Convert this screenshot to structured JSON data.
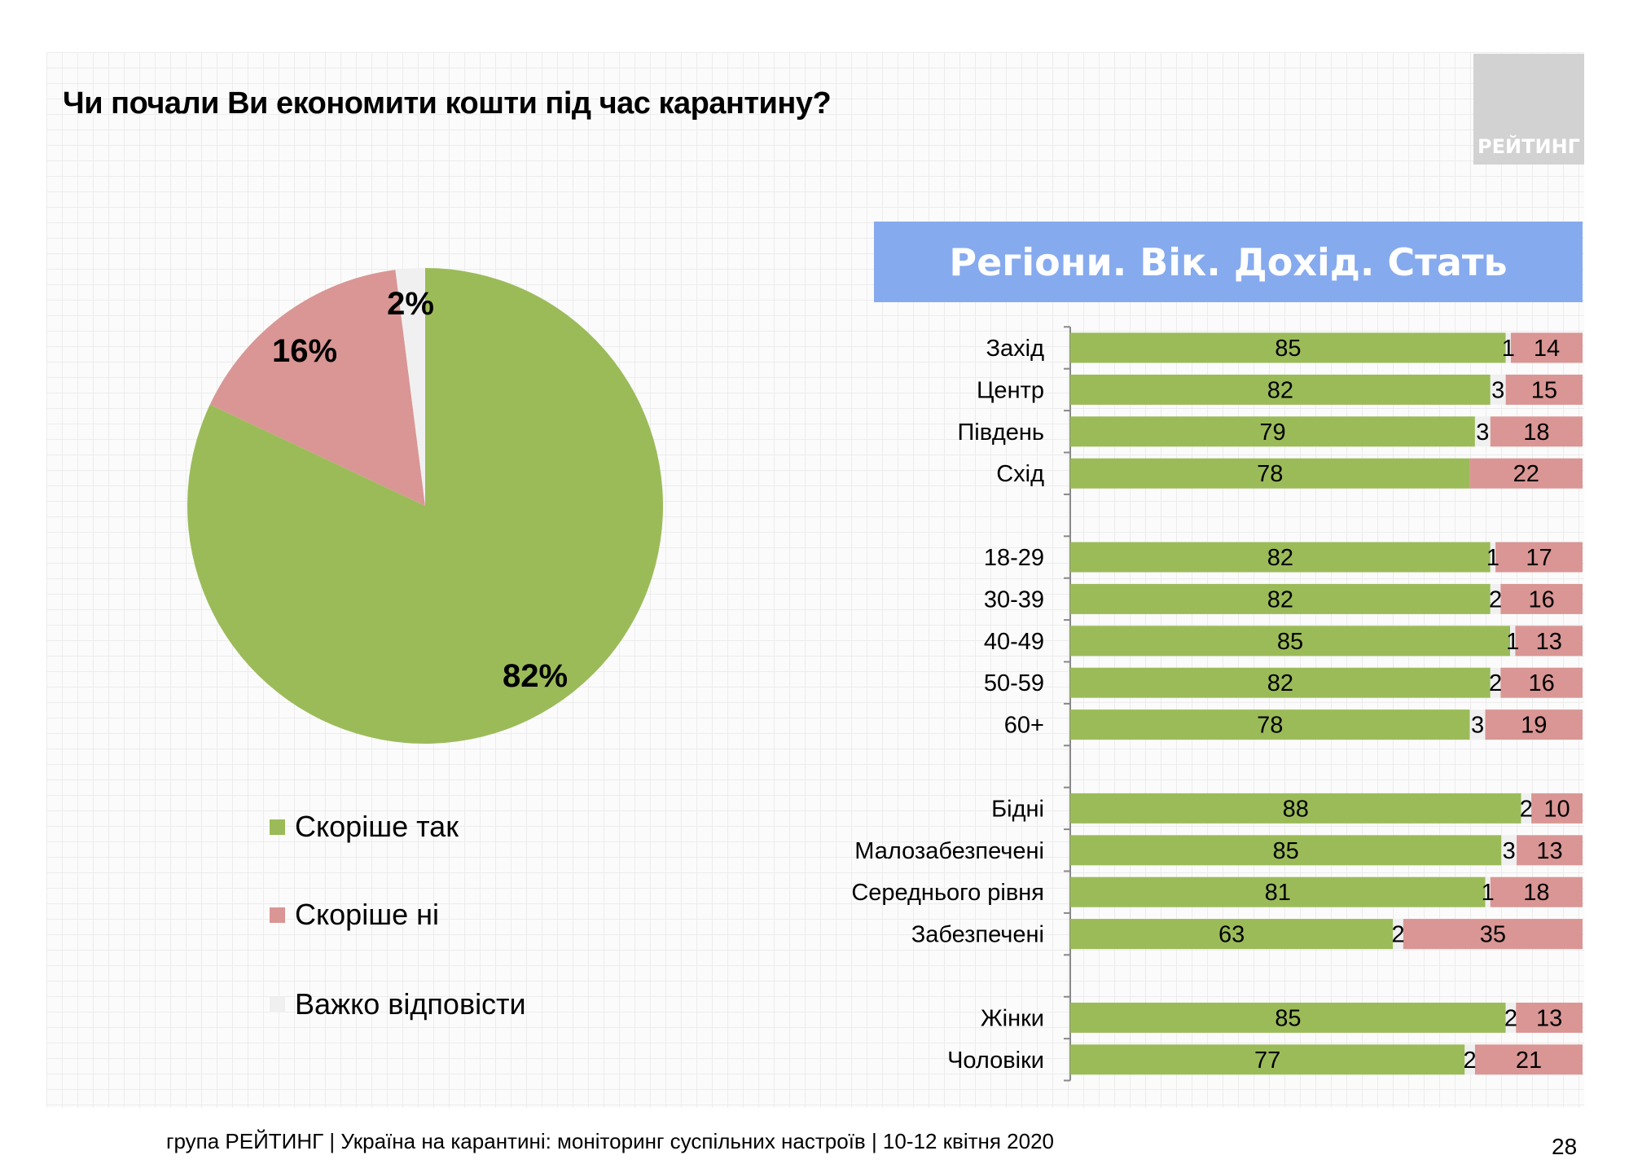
{
  "title": "Чи почали Ви економити кошти під час карантину?",
  "logo_text": "РЕЙТИНГ",
  "footer": "група РЕЙТИНГ | Україна на карантині: моніторинг суспільних настроїв  | 10-12 квітня  2020",
  "page_number": "28",
  "colors": {
    "yes": "#9bbb59",
    "no": "#d99694",
    "hard": "#f0f0f0",
    "banner": "#86aaee"
  },
  "chart_data": [
    {
      "type": "pie",
      "categories": [
        "Скоріше  так",
        "Скоріше  ні",
        "Важко відповісти"
      ],
      "values": [
        82,
        16,
        2
      ],
      "labels": [
        "82%",
        "16%",
        "2%"
      ],
      "legend": "bottom-left"
    },
    {
      "type": "bar",
      "stacked": true,
      "orientation": "horizontal",
      "title": "Регіони. Вік. Дохід. Стать",
      "xlim": [
        0,
        100
      ],
      "groups": [
        {
          "categories": [
            "Захід",
            "Центр",
            "Південь",
            "Схід"
          ],
          "yes": [
            85,
            82,
            79,
            78
          ],
          "hard": [
            1,
            3,
            3,
            null
          ],
          "no": [
            14,
            15,
            18,
            22
          ]
        },
        {
          "categories": [
            "18-29",
            "30-39",
            "40-49",
            "50-59",
            "60+"
          ],
          "yes": [
            82,
            82,
            85,
            82,
            78
          ],
          "hard": [
            1,
            2,
            1,
            2,
            3
          ],
          "no": [
            17,
            16,
            13,
            16,
            19
          ]
        },
        {
          "categories": [
            "Бідні",
            "Малозабезпечені",
            "Середнього рівня",
            "Забезпечені"
          ],
          "yes": [
            88,
            85,
            81,
            63
          ],
          "hard": [
            2,
            3,
            1,
            2
          ],
          "no": [
            10,
            13,
            18,
            35
          ]
        },
        {
          "categories": [
            "Жінки",
            "Чоловіки"
          ],
          "yes": [
            85,
            77
          ],
          "hard": [
            2,
            2
          ],
          "no": [
            13,
            21
          ]
        }
      ]
    }
  ]
}
